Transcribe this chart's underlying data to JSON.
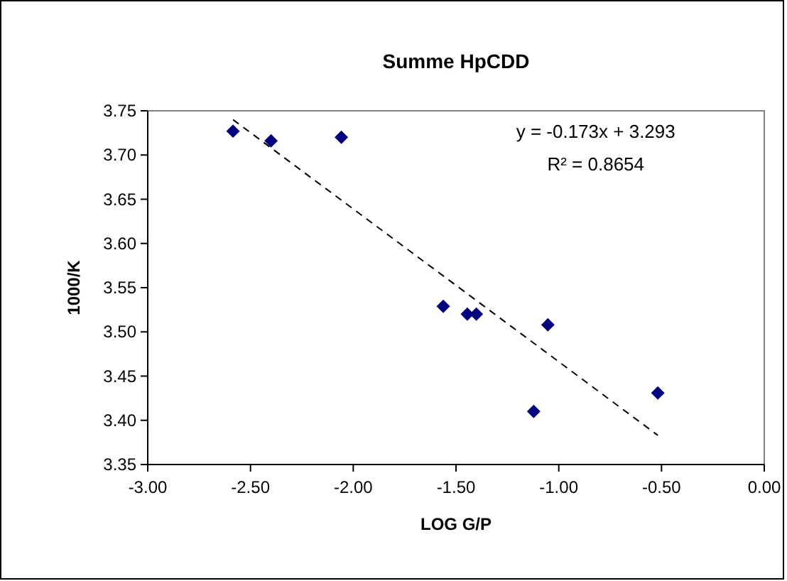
{
  "chart_data": {
    "type": "scatter",
    "title": "Summe HpCDD",
    "xlabel": "LOG G/P",
    "ylabel": "1000/K",
    "xlim": [
      -3,
      0
    ],
    "xticks": [
      {
        "value": -3,
        "label": "-3.00"
      },
      {
        "value": -2.5,
        "label": "-2.50"
      },
      {
        "value": -2,
        "label": "-2.00"
      },
      {
        "value": -1.5,
        "label": "-1.50"
      },
      {
        "value": -1,
        "label": "-1.00"
      },
      {
        "value": -0.5,
        "label": "-0.50"
      },
      {
        "value": 0,
        "label": "0.00"
      }
    ],
    "ylim": [
      3.35,
      3.75
    ],
    "yticks": [
      3.35,
      {
        "value": 3.4,
        "label": "3.40"
      },
      3.45,
      {
        "value": 3.5,
        "label": "3.50"
      },
      3.55,
      {
        "value": 3.6,
        "label": "3.60"
      },
      3.65,
      {
        "value": 3.7,
        "label": "3.70"
      },
      3.75
    ],
    "grid": false,
    "marker": "diamond",
    "series": [
      {
        "color": "#000080",
        "x": [
          -2.585,
          -2.4,
          -2.058,
          -1.562,
          -1.445,
          -1.401,
          -1.053,
          -1.122,
          -0.518
        ],
        "values": [
          3.727,
          3.716,
          3.72,
          3.529,
          3.52,
          3.52,
          3.508,
          3.41,
          3.431
        ]
      },
      {
        "type": "line",
        "color": "#000000",
        "line_style": "dashed",
        "marker": "none",
        "x": [
          -2.585,
          -0.518
        ],
        "values": [
          3.74,
          3.383
        ]
      }
    ],
    "annotations": [
      "y = -0.173x + 3.293",
      "R² = 0.8654"
    ]
  }
}
